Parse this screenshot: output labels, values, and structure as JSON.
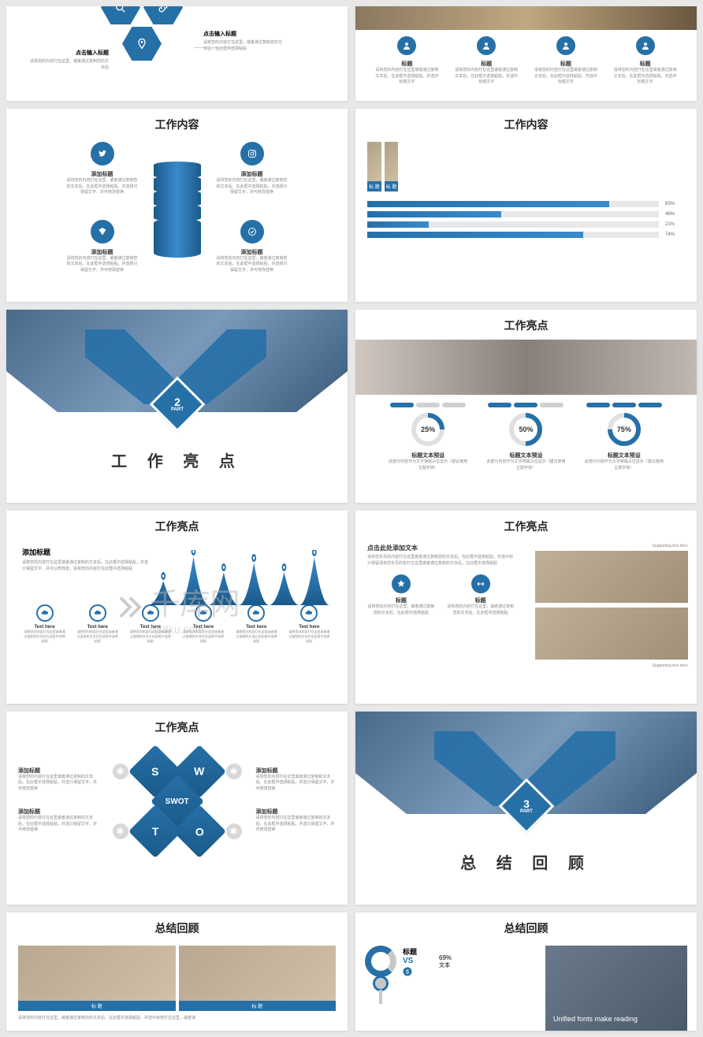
{
  "colors": {
    "primary": "#2670a8",
    "primaryDark": "#1a5a8a",
    "text": "#333",
    "muted": "#888",
    "track": "#e8e8e8"
  },
  "watermark": {
    "text": "千库网",
    "sub": "588ku.com"
  },
  "slide1": {
    "item1": {
      "title": "点击输入标题",
      "desc": "请将您的内容打在这里，或者通过复制您的文本后"
    },
    "item2": {
      "title": "点击输入标题",
      "desc": "请将您的内容打在这里，或者通过复制您的文本后，在此框中选择粘贴"
    }
  },
  "slide2": {
    "title": "标题",
    "cols": [
      {
        "h": "标题",
        "d": "请将您的内容打在这里或者通过复制文本后，在此框中选择粘贴，并选中标题文字"
      },
      {
        "h": "标题",
        "d": "请将您的内容打在这里或者通过复制文本后，在此框中选择粘贴，并选中标题文字"
      },
      {
        "h": "标题",
        "d": "请将您的内容打在这里或者通过复制文本后，在此框中选择粘贴，并选中标题文字"
      },
      {
        "h": "标题",
        "d": "请将您的内容打在这里或者通过复制文本后，在此框中选择粘贴，并选中标题文字"
      }
    ]
  },
  "slide3": {
    "title": "工作内容",
    "items": [
      {
        "h": "添加标题",
        "d": "请将您的内容打在这里，或者通过复制您的文本后，在此框中选择粘贴，并选择只保留文字，并可修改替换"
      },
      {
        "h": "添加标题",
        "d": "请将您的内容打在这里，或者通过复制您的文本后，在此框中选择粘贴，并选择只保留文字，并可修改替换"
      },
      {
        "h": "添加标题",
        "d": "请将您的内容打在这里，或者通过复制您的文本后，在此框中选择粘贴，并选择只保留文字，并可修改替换"
      },
      {
        "h": "添加标题",
        "d": "请将您的内容打在这里，或者通过复制您的文本后，在此框中选择粘贴，并选择只保留文字，并可修改替换"
      }
    ]
  },
  "slide4": {
    "title": "工作内容",
    "labels": [
      "标 题",
      "标 题"
    ],
    "bars": [
      {
        "pct": 83,
        "label": "83%"
      },
      {
        "pct": 46,
        "label": "46%"
      },
      {
        "pct": 21,
        "label": "21%"
      },
      {
        "pct": 74,
        "label": "74%"
      }
    ]
  },
  "slide5": {
    "num": "2",
    "part": "PART",
    "title": "工 作 亮 点"
  },
  "slide6": {
    "title": "工作亮点",
    "items": [
      {
        "pct": 25,
        "label": "25%",
        "h": "标题文本预设",
        "d": "此部分内容作为文字排版占位显示（建议使用主题字体）"
      },
      {
        "pct": 50,
        "label": "50%",
        "h": "标题文本预设",
        "d": "此部分内容作为文字排版占位显示（建议使用主题字体）"
      },
      {
        "pct": 75,
        "label": "75%",
        "h": "标题文本预设",
        "d": "此部分内容作为文字排版占位显示（建议使用主题字体）"
      }
    ]
  },
  "slide7": {
    "title": "工作亮点",
    "addTitle": "添加标题",
    "addDesc": "请将您的内容打在这里或者通过复制的文本后，在此框中选择粘贴，并选只保留文字，并可以修改替，请将您的内容打在此框中选择粘贴",
    "peaks": [
      31,
      62,
      42,
      54,
      42,
      61
    ],
    "cols": [
      {
        "h": "Text here",
        "d": "请将您内的容打在这里或者通过复制的文本后在此框中选择粘贴"
      },
      {
        "h": "Text here",
        "d": "请将您内的容打在这里或者通过复制的文本后在此框中选择粘贴"
      },
      {
        "h": "Text here",
        "d": "请将您内的容打在这里或者通过复制的文本后在此框中选择粘贴"
      },
      {
        "h": "Text here",
        "d": "请将您内的容打在这里或者通过复制的文本后在此框中选择粘贴"
      },
      {
        "h": "Text here",
        "d": "请将您内的容打在这里或者通过复制的文本后在此框中选择粘贴"
      },
      {
        "h": "Text here",
        "d": "请将您内的容打在这里或者通过复制的文本后在此框中选择粘贴"
      }
    ]
  },
  "slide8": {
    "title": "工作亮点",
    "add": "点击此处添加文本",
    "addDesc": "请将您本页的内容打在这里或者通过复制您的文本后，在此框中选择粘贴，并选中标只保留请将您本页的容打在这里或者通过复制的文本后，在此框中选择粘贴",
    "supporting": "Supporting text here.",
    "supporting2": "Supporting text here.",
    "cols": [
      {
        "h": "标题",
        "d": "请将您的内容打在这里，或者通过复制您的文本后，在此框中选择粘贴"
      },
      {
        "h": "标题",
        "d": "请将您的内容打在这里，或者通过复制您的文本后，在此框中选择粘贴"
      }
    ]
  },
  "slide9": {
    "title": "工作亮点",
    "center": "SWOT",
    "quads": [
      "S",
      "W",
      "T",
      "O"
    ],
    "items": [
      {
        "h": "添加标题",
        "d": "请将您的内容打在这里或者通过复制的文本后，在此框中选择粘贴，并选只保留文字，并可修改替换"
      },
      {
        "h": "添加标题",
        "d": "请将您的内容打在这里或者通过复制的文本后，在此框中选择粘贴，并选只保留文字，并可修改替换"
      },
      {
        "h": "添加标题",
        "d": "请将您的内容打在这里或者通过复制的文本后，在此框中选择粘贴，并选只保留文字，并可修改替换"
      },
      {
        "h": "添加标题",
        "d": "请将您的内容打在这里或者通过复制的文本后，在此框中选择粘贴，并选只保留文字，并可修改替换"
      }
    ]
  },
  "slide10": {
    "num": "3",
    "part": "PART",
    "title": "总 结 回 顾"
  },
  "slide11": {
    "title": "总结回顾",
    "labels": [
      "标 题",
      "标 题"
    ],
    "foot": "请将您的内容打在这里，或者通过复制您的文本后，在此框中选择粘贴，并选中标按打在这里，或者通"
  },
  "slide12": {
    "title": "总结回顾",
    "h": "标题",
    "vs": "VS",
    "pct": "69%",
    "sub": "文本",
    "right": "Unified fonts make reading"
  }
}
